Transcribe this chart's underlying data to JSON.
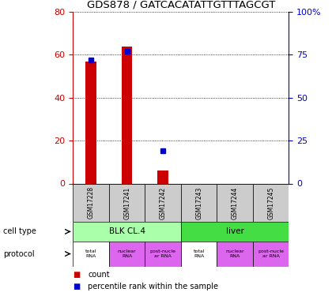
{
  "title": "GDS878 / GATCACATATTGTTTAGCGT",
  "samples": [
    "GSM17228",
    "GSM17241",
    "GSM17242",
    "GSM17243",
    "GSM17244",
    "GSM17245"
  ],
  "counts": [
    57,
    64,
    6,
    0,
    0,
    0
  ],
  "percentiles": [
    72,
    77,
    19,
    0,
    0,
    0
  ],
  "left_ylim": [
    0,
    80
  ],
  "right_ylim": [
    0,
    100
  ],
  "left_yticks": [
    0,
    20,
    40,
    60,
    80
  ],
  "right_yticks": [
    0,
    25,
    50,
    75,
    100
  ],
  "right_yticklabels": [
    "0",
    "25",
    "50",
    "75",
    "100%"
  ],
  "bar_color": "#cc0000",
  "dot_color": "#0000cc",
  "cell_type_groups": [
    {
      "label": "BLK CL.4",
      "start": 0,
      "end": 3,
      "color": "#aaffaa"
    },
    {
      "label": "liver",
      "start": 3,
      "end": 6,
      "color": "#44dd44"
    }
  ],
  "protocol_colors": [
    "#ffffff",
    "#dd66ee",
    "#dd66ee",
    "#ffffff",
    "#dd66ee",
    "#dd66ee"
  ],
  "protocol_labels": [
    "total\nRNA",
    "nuclear\nRNA",
    "post-nucle\nar RNA",
    "total\nRNA",
    "nuclear\nRNA",
    "post-nucle\nar RNA"
  ],
  "legend_count_color": "#cc0000",
  "legend_pct_color": "#0000cc",
  "cell_type_label": "cell type",
  "protocol_label": "protocol",
  "background_color": "#ffffff",
  "sample_cell_color": "#cccccc"
}
